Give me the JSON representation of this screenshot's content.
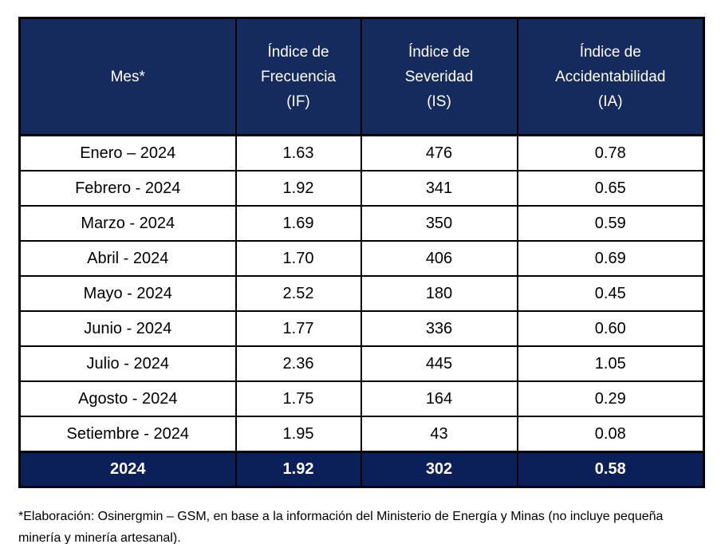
{
  "table": {
    "columns": [
      {
        "key": "mes",
        "label": "Mes*"
      },
      {
        "key": "if",
        "label": "Índice de\nFrecuencia\n(IF)"
      },
      {
        "key": "is",
        "label": "Índice de\nSeveridad\n(IS)"
      },
      {
        "key": "ia",
        "label": "Índice de\nAccidentabilidad\n(IA)"
      }
    ],
    "rows": [
      {
        "mes": "Enero – 2024",
        "if": "1.63",
        "is": "476",
        "ia": "0.78"
      },
      {
        "mes": "Febrero - 2024",
        "if": "1.92",
        "is": "341",
        "ia": "0.65"
      },
      {
        "mes": "Marzo - 2024",
        "if": "1.69",
        "is": "350",
        "ia": "0.59"
      },
      {
        "mes": "Abril - 2024",
        "if": "1.70",
        "is": "406",
        "ia": "0.69"
      },
      {
        "mes": "Mayo - 2024",
        "if": "2.52",
        "is": "180",
        "ia": "0.45"
      },
      {
        "mes": "Junio - 2024",
        "if": "1.77",
        "is": "336",
        "ia": "0.60"
      },
      {
        "mes": "Julio - 2024",
        "if": "2.36",
        "is": "445",
        "ia": "1.05"
      },
      {
        "mes": "Agosto - 2024",
        "if": "1.75",
        "is": "164",
        "ia": "0.29"
      },
      {
        "mes": "Setiembre - 2024",
        "if": "1.95",
        "is": "43",
        "ia": "0.08"
      }
    ],
    "total": {
      "mes": "2024",
      "if": "1.92",
      "is": "302",
      "ia": "0.58"
    }
  },
  "footnote": {
    "text": "*Elaboración: Osinergmin – GSM, en base a la información del Ministerio de Energía y Minas (no incluye pequeña minería y minería artesanal)."
  },
  "colors": {
    "header_bg": "#162B5D",
    "total_bg": "#0B2059",
    "border": "#000000",
    "text_light": "#FFFFFF",
    "text_dark": "#000000"
  }
}
